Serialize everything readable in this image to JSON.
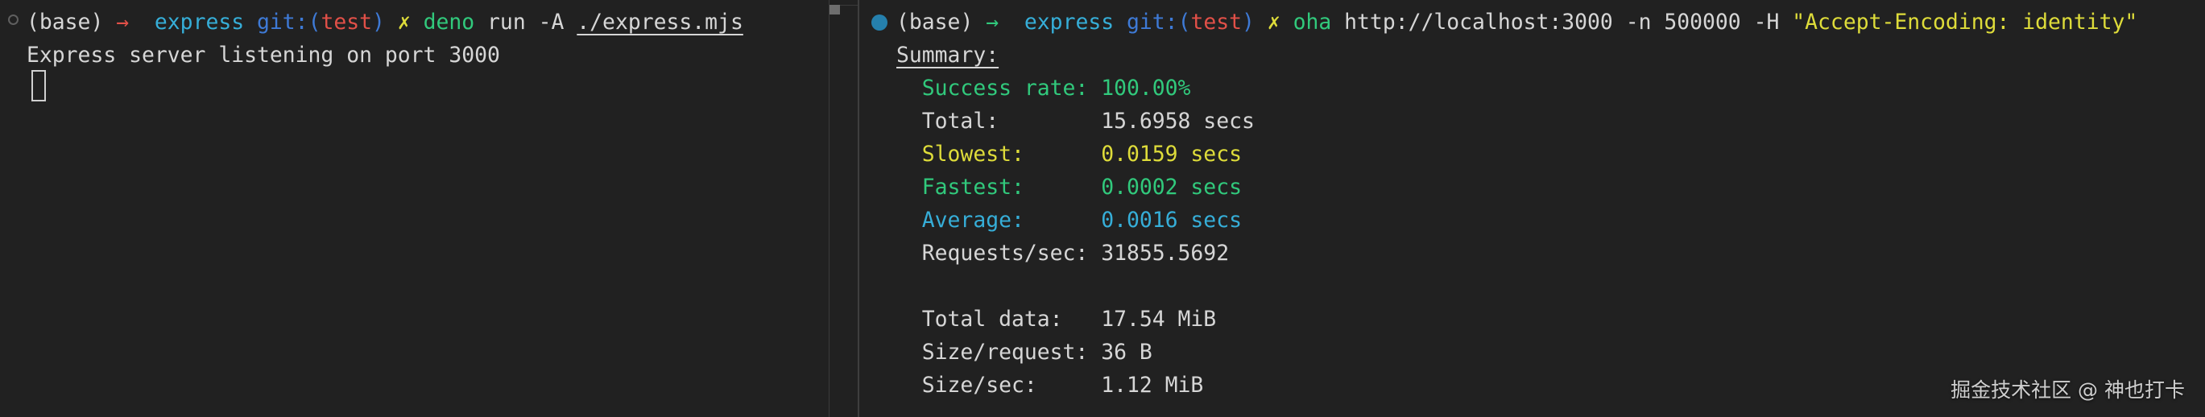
{
  "palette": {
    "background": "#212121",
    "fg": "#d6d6d6",
    "red": "#e25048",
    "green": "#31c97c",
    "cyan": "#36aed8",
    "blue": "#3e7ad6",
    "yellow": "#dedc3a",
    "divider": "#3e3e3e",
    "scrollbar_thumb": "#6e6e6e",
    "pane_indicator_active": "#2580ad",
    "pane_indicator_inactive": "#5f5f5f",
    "cursor": "#d0d0d0",
    "watermark_color": "#cfcfcf"
  },
  "left_pane": {
    "prompt_segments": [
      {
        "text": "(base) ",
        "color": "fg"
      },
      {
        "text": "→",
        "color": "red"
      },
      {
        "text": "  ",
        "color": "fg"
      },
      {
        "text": "express ",
        "color": "cyan"
      },
      {
        "text": "git:(",
        "color": "blue"
      },
      {
        "text": "test",
        "color": "red"
      },
      {
        "text": ") ",
        "color": "blue"
      },
      {
        "text": "✗ ",
        "color": "yellow"
      },
      {
        "text": "deno ",
        "color": "green"
      },
      {
        "text": "run -A ",
        "color": "fg"
      },
      {
        "text": "./express.mjs",
        "color": "fg"
      }
    ],
    "output_line": "Express server listening on port 3000"
  },
  "right_pane": {
    "prompt_segments": [
      {
        "text": "(base) ",
        "color": "fg"
      },
      {
        "text": "→",
        "color": "green"
      },
      {
        "text": "  ",
        "color": "fg"
      },
      {
        "text": "express ",
        "color": "cyan"
      },
      {
        "text": "git:(",
        "color": "blue"
      },
      {
        "text": "test",
        "color": "red"
      },
      {
        "text": ") ",
        "color": "blue"
      },
      {
        "text": "✗ ",
        "color": "yellow"
      },
      {
        "text": "oha ",
        "color": "green"
      },
      {
        "text": "http://localhost:3000 -n 500000 -H ",
        "color": "fg"
      },
      {
        "text": "\"Accept-Encoding: identity\"",
        "color": "yellow"
      }
    ],
    "summary_header": "Summary:",
    "summary_lines": [
      {
        "label": "Success rate:",
        "value": "100.00%",
        "color": "green"
      },
      {
        "label": "Total:",
        "value": "15.6958 secs",
        "color": "fg"
      },
      {
        "label": "Slowest:",
        "value": "0.0159 secs",
        "color": "yellow"
      },
      {
        "label": "Fastest:",
        "value": "0.0002 secs",
        "color": "green"
      },
      {
        "label": "Average:",
        "value": "0.0016 secs",
        "color": "cyan"
      },
      {
        "label": "Requests/sec:",
        "value": "31855.5692",
        "color": "fg"
      }
    ],
    "data_lines": [
      {
        "label": "Total data:",
        "value": "17.54 MiB",
        "color": "fg"
      },
      {
        "label": "Size/request:",
        "value": "36 B",
        "color": "fg"
      },
      {
        "label": "Size/sec:",
        "value": "1.12 MiB",
        "color": "fg"
      }
    ]
  },
  "watermark": "掘金技术社区 @ 神也打卡"
}
